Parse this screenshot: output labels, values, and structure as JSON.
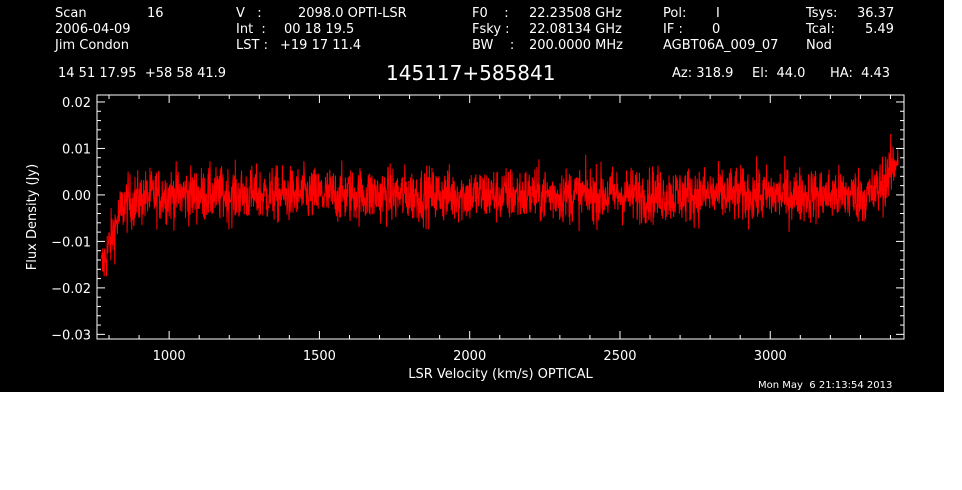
{
  "header": {
    "col1": {
      "scan_label": "Scan",
      "scan_value": "16",
      "date": "2006-04-09",
      "observer": "Jim Condon"
    },
    "col2": {
      "v_label": "V   :",
      "v_value": "2098.0 OPTI-LSR",
      "int_label": "Int  :",
      "int_value": "00 18 19.5",
      "lst_label": "LST :",
      "lst_value": "+19 17 11.4"
    },
    "col3": {
      "f0_label": "F0    :",
      "f0_value": "22.23508 GHz",
      "fsky_label": "Fsky :",
      "fsky_value": "22.08134 GHz",
      "bw_label": "BW    :",
      "bw_value": "200.0000 MHz"
    },
    "col4": {
      "pol_label": "Pol:",
      "pol_value": "I",
      "if_label": "IF :",
      "if_value": "0",
      "project": "AGBT06A_009_07"
    },
    "col5": {
      "tsys_label": "Tsys:",
      "tsys_value": "36.37",
      "tcal_label": "Tcal:",
      "tcal_value": "5.49",
      "mode": "Nod"
    },
    "coords": "14 51 17.95  +58 58 41.9",
    "source": "145117+585841",
    "az": "Az: 318.9",
    "el": "El:  44.0",
    "ha": "HA:  4.43"
  },
  "footer": {
    "timestamp": "Mon May  6 21:13:54 2013"
  },
  "colors": {
    "background": "#000000",
    "axes": "#ffffff",
    "trace": "#ff0000"
  },
  "chart_data": {
    "type": "line",
    "xlabel": "LSR Velocity (km/s) OPTICAL",
    "ylabel": "Flux Density (Jy)",
    "xlim": [
      760,
      3445
    ],
    "ylim": [
      -0.031,
      0.0215
    ],
    "x_ticks": [
      1000,
      1500,
      2000,
      2500,
      3000
    ],
    "x_tick_labels": [
      "1000",
      "1500",
      "2000",
      "2500",
      "3000"
    ],
    "y_ticks": [
      -0.03,
      -0.02,
      -0.01,
      0.0,
      0.01,
      0.02
    ],
    "y_tick_labels": [
      "−0.03",
      "−0.02",
      "−0.01",
      "0.00",
      "0.01",
      "0.02"
    ],
    "grid": false,
    "series": [
      {
        "color": "#ff0000",
        "x": [
          775,
          800,
          825,
          850,
          900,
          950,
          1000,
          1050,
          1100,
          1150,
          1200,
          1250,
          1300,
          1350,
          1400,
          1450,
          1500,
          1550,
          1600,
          1650,
          1700,
          1750,
          1800,
          1850,
          1900,
          1950,
          2000,
          2050,
          2100,
          2150,
          2200,
          2250,
          2300,
          2350,
          2400,
          2450,
          2500,
          2550,
          2600,
          2650,
          2700,
          2750,
          2800,
          2850,
          2900,
          2950,
          3000,
          3050,
          3100,
          3150,
          3200,
          3250,
          3300,
          3340,
          3370,
          3390,
          3410,
          3425
        ],
        "y_mean": [
          -0.016,
          -0.011,
          -0.006,
          -0.002,
          -0.001,
          0.0,
          0.0,
          0.0,
          0.0,
          0.0,
          0.0,
          0.0,
          0.0,
          0.0,
          0.0,
          0.0,
          0.0,
          0.0,
          0.0,
          0.0,
          0.0,
          0.0,
          0.0,
          0.0,
          0.0,
          0.0,
          0.0,
          0.0,
          0.0,
          0.0,
          0.0,
          0.0,
          0.0,
          0.0,
          0.0,
          0.0,
          0.0,
          0.0,
          0.0,
          0.0,
          0.0,
          0.0,
          0.0,
          0.0,
          0.0,
          0.0,
          0.0,
          0.0,
          0.0,
          0.0,
          0.0,
          0.0,
          0.0,
          0.0,
          0.002,
          0.004,
          0.006,
          0.009
        ],
        "noise_rms": 0.003,
        "y_min": -0.021,
        "y_max": 0.0165
      }
    ]
  }
}
